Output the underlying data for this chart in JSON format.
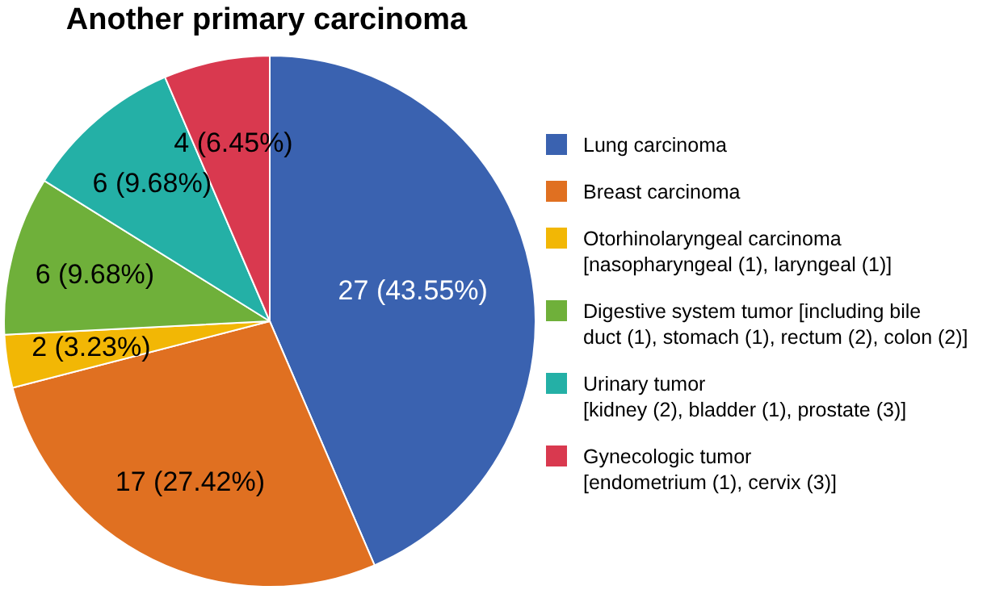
{
  "chart_data": {
    "type": "pie",
    "title": "Another primary carcinoma",
    "categories": [
      "Lung carcinoma",
      "Breast carcinoma",
      "Otorhinolaryngeal carcinoma\n[nasopharyngeal (1), laryngeal (1)]",
      "Digestive system tumor [including bile\nduct (1), stomach (1), rectum (2), colon (2)]",
      "Urinary tumor\n[kidney (2), bladder (1), prostate (3)]",
      "Gynecologic tumor\n[endometrium (1), cervix (3)]"
    ],
    "values": [
      27,
      17,
      2,
      6,
      6,
      4
    ],
    "value_labels": [
      "27 (43.55%)",
      "17 (27.42%)",
      "2 (3.23%)",
      "6 (9.68%)",
      "6 (9.68%)",
      "4 (6.45%)"
    ],
    "colors": [
      "#3a62b0",
      "#e07021",
      "#f2b705",
      "#6fb03a",
      "#24b0a6",
      "#d9394f"
    ],
    "legend": "right"
  }
}
